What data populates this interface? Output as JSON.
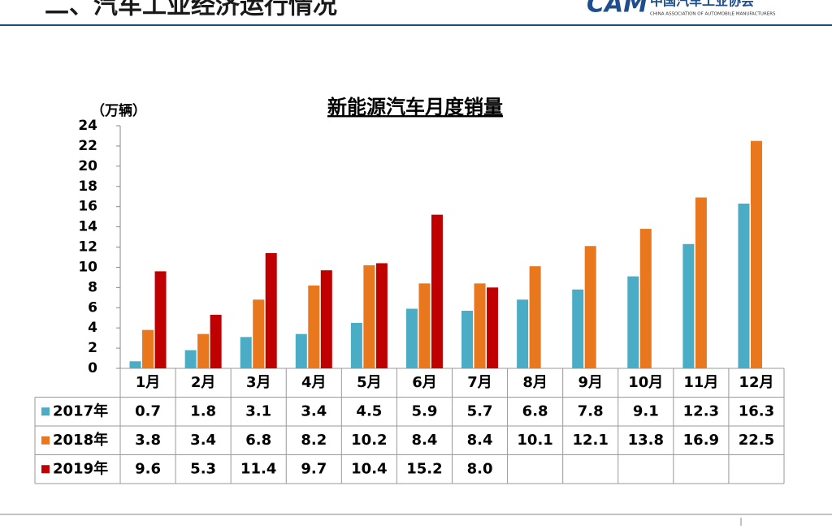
{
  "header": {
    "title": "二、汽车工业经济运行情况",
    "logo_mark": "CAM",
    "logo_text": "中国汽车工业协会",
    "logo_subtitle": "CHINA ASSOCIATION OF AUTOMOBILE MANUFACTURERS"
  },
  "chart_data": {
    "type": "bar",
    "title": "新能源汽车月度销量",
    "y_label": "（万辆）",
    "categories": [
      "1月",
      "2月",
      "3月",
      "4月",
      "5月",
      "6月",
      "7月",
      "8月",
      "9月",
      "10月",
      "11月",
      "12月"
    ],
    "series": [
      {
        "name": "2017年",
        "color": "#4bacc6",
        "values": [
          0.7,
          1.8,
          3.1,
          3.4,
          4.5,
          5.9,
          5.7,
          6.8,
          7.8,
          9.1,
          12.3,
          16.3
        ]
      },
      {
        "name": "2018年",
        "color": "#e8771e",
        "values": [
          3.8,
          3.4,
          6.8,
          8.2,
          10.2,
          8.4,
          8.4,
          10.1,
          12.1,
          13.8,
          16.9,
          22.5
        ]
      },
      {
        "name": "2019年",
        "color": "#c00000",
        "values": [
          9.6,
          5.3,
          11.4,
          9.7,
          10.4,
          15.2,
          8,
          null,
          null,
          null,
          null,
          null
        ],
        "value_labels": [
          "9.6",
          "5.3",
          "11.4",
          "9.7",
          "10.4",
          "15.2",
          "8.0",
          null,
          null,
          null,
          null,
          null
        ]
      }
    ],
    "ylim": [
      0,
      24
    ],
    "yticks": [
      0,
      2,
      4,
      6,
      8,
      10,
      12,
      14,
      16,
      18,
      20,
      22,
      24
    ],
    "data_table": true
  }
}
